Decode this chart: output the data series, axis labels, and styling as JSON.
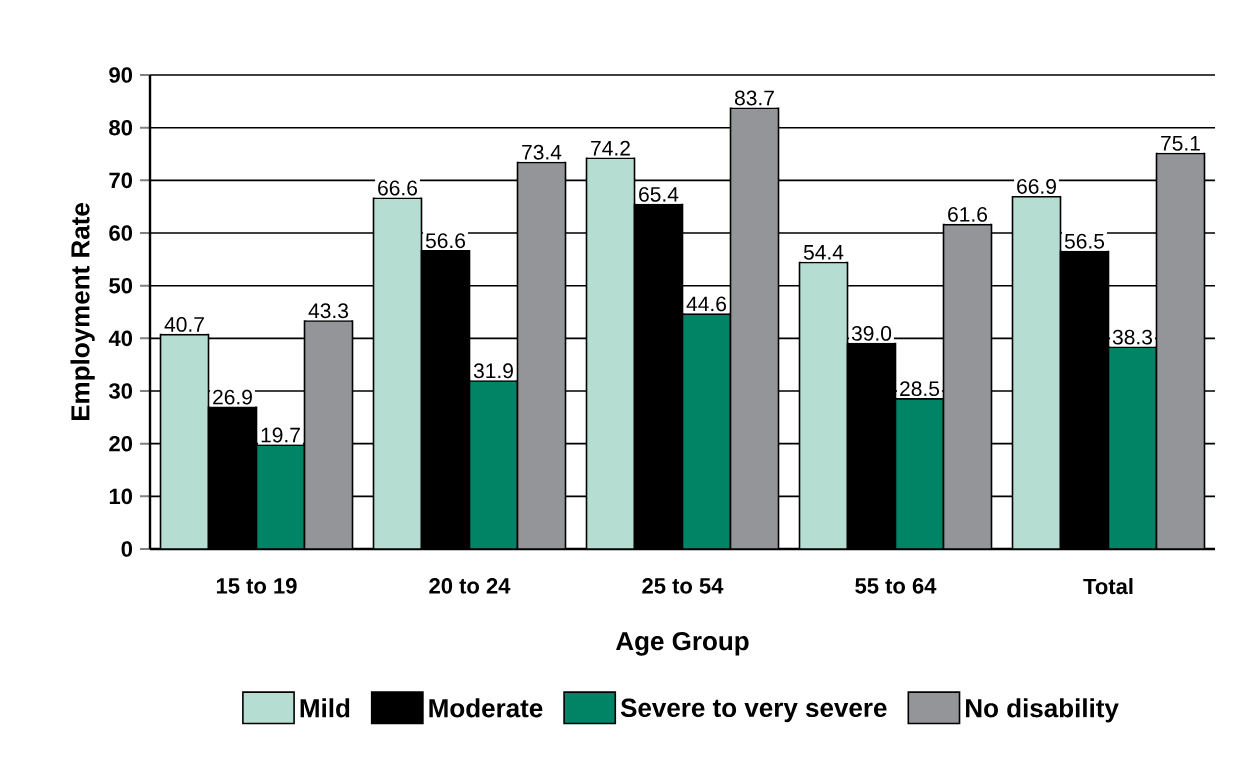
{
  "chart_data": {
    "type": "bar",
    "xlabel": "Age Group",
    "ylabel": "Employment Rate",
    "categories": [
      "15 to 19",
      "20 to 24",
      "25 to 54",
      "55 to 64",
      "Total"
    ],
    "series": [
      {
        "name": "Mild",
        "color": "#b5ddd1",
        "values": [
          40.7,
          66.6,
          74.2,
          54.4,
          66.9
        ],
        "value_labels": [
          "40.7",
          "66.6",
          "74.2",
          "54.4",
          "66.9"
        ]
      },
      {
        "name": "Moderate",
        "color": "#000000",
        "values": [
          26.9,
          56.6,
          65.4,
          39.0,
          56.5
        ],
        "value_labels": [
          "26.9",
          "56.6",
          "65.4",
          "39.0",
          "56.5"
        ]
      },
      {
        "name": "Severe to very severe",
        "color": "#008466",
        "values": [
          19.7,
          31.9,
          44.6,
          28.5,
          38.3
        ],
        "value_labels": [
          "19.7",
          "31.9",
          "44.6",
          "28.5",
          "38.3"
        ]
      },
      {
        "name": "No disability",
        "color": "#939598",
        "values": [
          43.3,
          73.4,
          83.7,
          61.6,
          75.1
        ],
        "value_labels": [
          "43.3",
          "73.4",
          "83.7",
          "61.6",
          "75.1"
        ]
      }
    ],
    "ylim": [
      0,
      90
    ],
    "yticks": [
      0,
      10,
      20,
      30,
      40,
      50,
      60,
      70,
      80,
      90
    ],
    "grid": "y",
    "legend": "bottom"
  }
}
